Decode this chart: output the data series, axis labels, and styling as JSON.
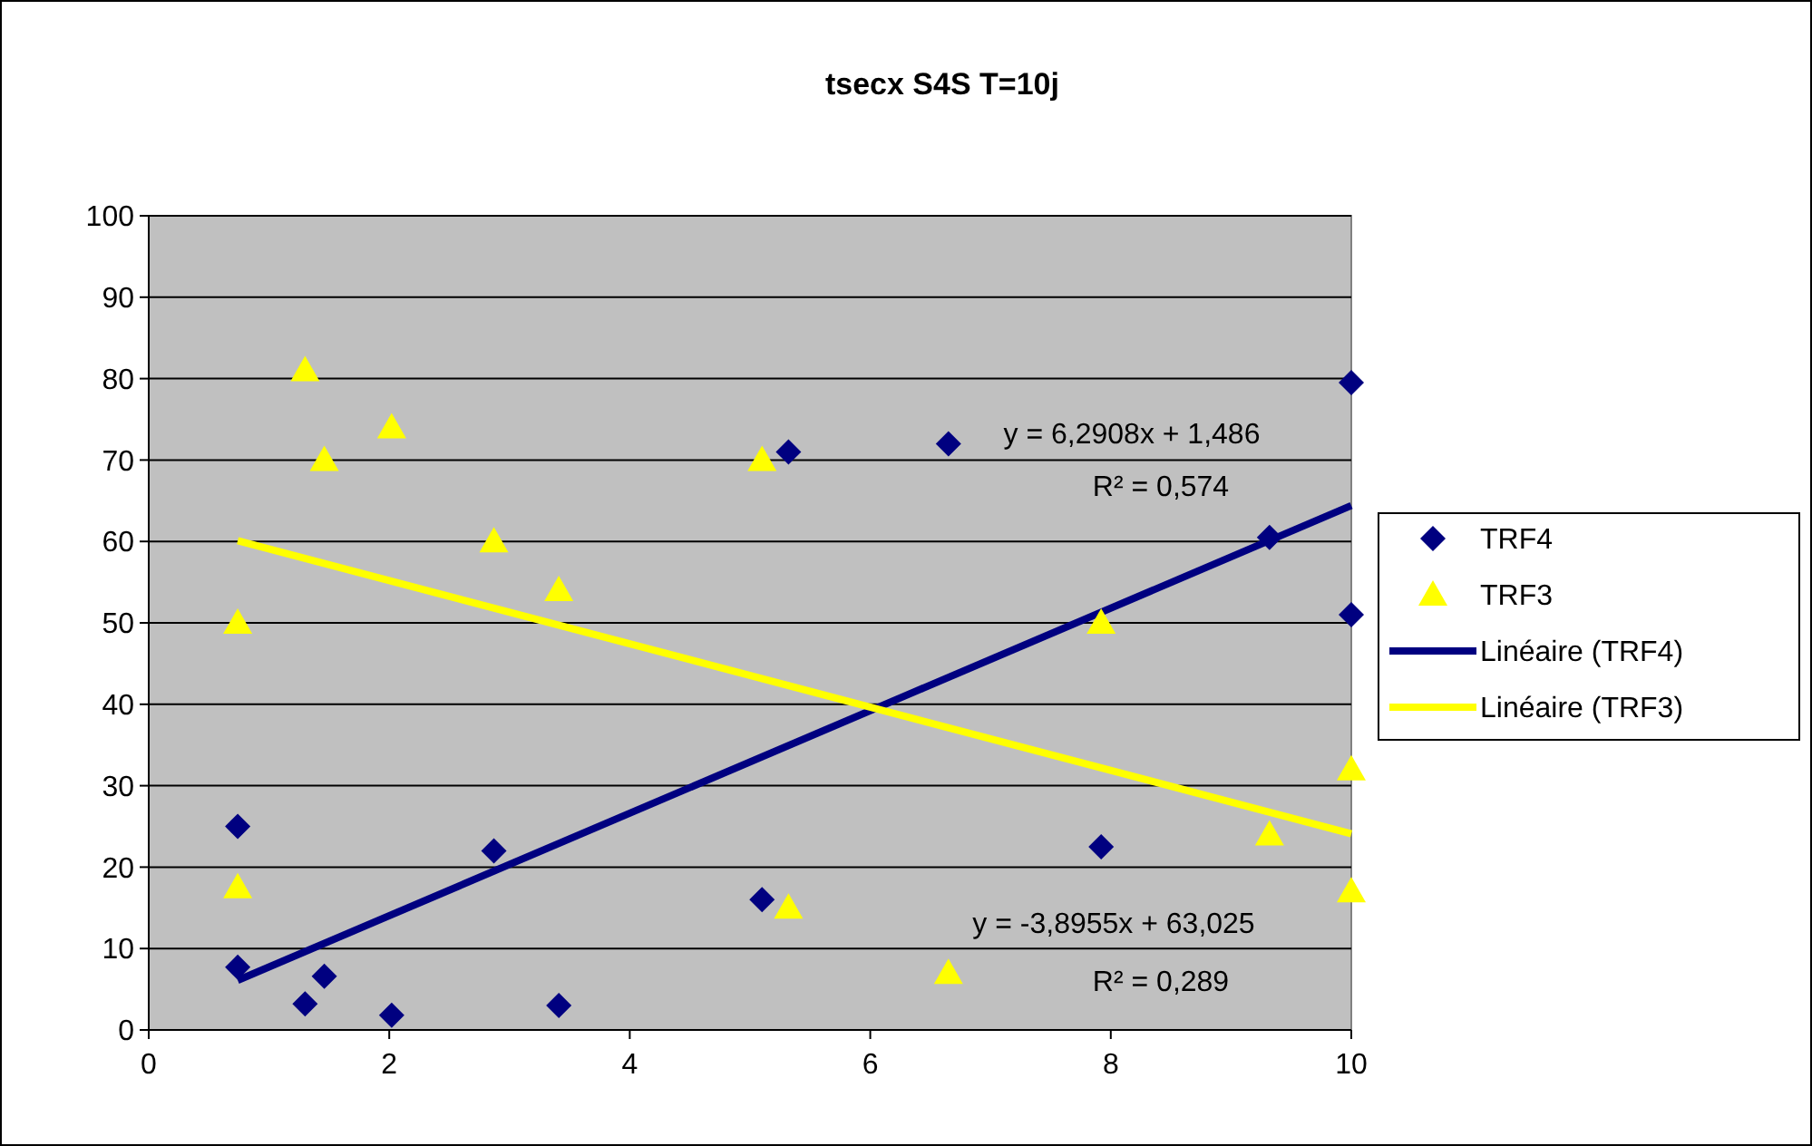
{
  "chart_data": {
    "type": "scatter",
    "title": "tsecx S4S T=10j",
    "xlim": [
      0,
      10
    ],
    "xticks": [
      0,
      2,
      4,
      6,
      8,
      10
    ],
    "ylim": [
      0,
      100
    ],
    "yticks": [
      0,
      10,
      20,
      30,
      40,
      50,
      60,
      70,
      80,
      90,
      100
    ],
    "grid": "y",
    "legend": "right",
    "series": [
      {
        "name": "TRF4",
        "marker": "diamond",
        "color": "#000080",
        "x": [
          0.74,
          0.74,
          1.3,
          1.46,
          2.02,
          2.87,
          3.41,
          5.1,
          5.32,
          6.65,
          7.92,
          9.32,
          10,
          10
        ],
        "values": [
          25,
          7.7,
          3.2,
          6.6,
          1.8,
          22,
          3,
          16,
          71,
          72,
          22.5,
          60.5,
          79.5,
          51
        ]
      },
      {
        "name": "TRF3",
        "marker": "triangle",
        "color": "#ffff00",
        "x": [
          0.74,
          0.74,
          1.3,
          1.46,
          2.02,
          2.87,
          3.41,
          5.1,
          5.32,
          6.65,
          7.92,
          9.32,
          10,
          10
        ],
        "values": [
          50,
          17.5,
          81,
          70,
          74,
          60,
          54,
          70,
          15,
          7,
          50,
          24,
          32,
          17
        ]
      },
      {
        "name": "Linéaire (TRF4)",
        "type": "line",
        "marker": "none",
        "color": "#000080",
        "x": [
          0.74,
          10
        ],
        "values": [
          6.1,
          64.4
        ]
      },
      {
        "name": "Linéaire (TRF3)",
        "type": "line",
        "marker": "none",
        "color": "#ffff00",
        "x": [
          0.74,
          10
        ],
        "values": [
          60.1,
          24.1
        ]
      }
    ],
    "annotations": [
      "y = 6,2908x + 1,486",
      "R² = 0,574",
      "y = -3,8955x + 63,025",
      "R² = 0,289"
    ]
  }
}
